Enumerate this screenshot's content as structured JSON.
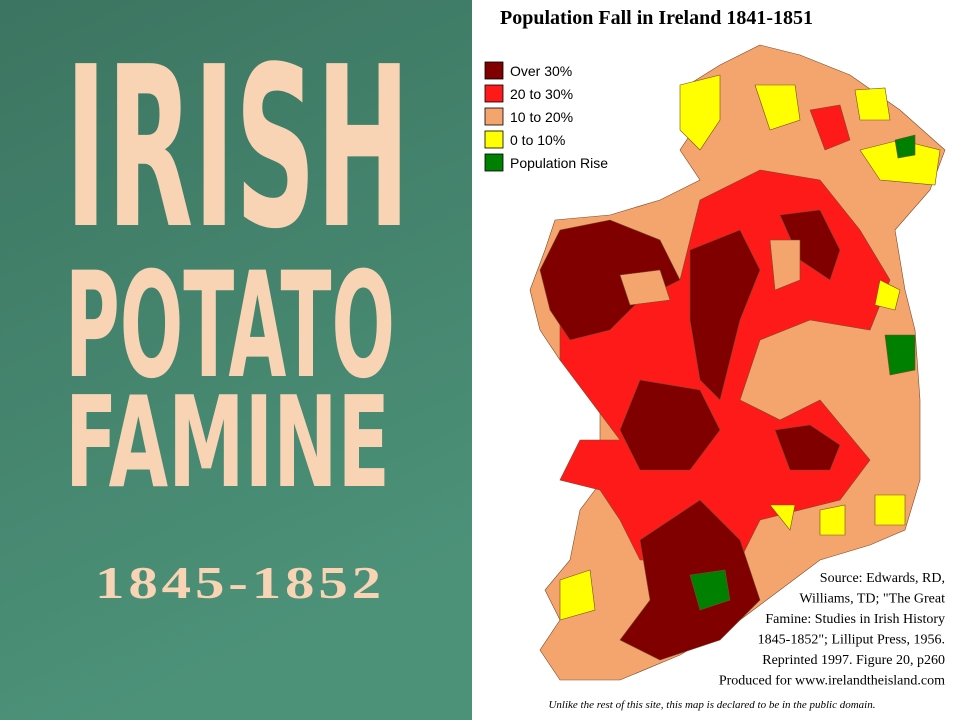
{
  "slide": {
    "title_lines": [
      "IRISH",
      "POTATO",
      "FAMINE"
    ],
    "dates": "1845-1852"
  },
  "map": {
    "title": "Population Fall in Ireland 1841-1851",
    "legend": [
      {
        "label": "Over 30%",
        "color": "#800000"
      },
      {
        "label": "20 to 30%",
        "color": "#ff1a1a"
      },
      {
        "label": "10 to 20%",
        "color": "#f4a56e"
      },
      {
        "label": "0 to 10%",
        "color": "#ffff00"
      },
      {
        "label": "Population Rise",
        "color": "#008000"
      }
    ],
    "source": [
      "Source: Edwards, RD,",
      "Williams, TD; \"The Great",
      "Famine: Studies in Irish History",
      "1845-1852\"; Lilliput Press, 1956.",
      "Reprinted 1997. Figure 20, p260",
      "Produced for www.irelandtheisland.com"
    ],
    "footer": "Unlike the rest of this site, this map is declared to be in the public domain."
  }
}
